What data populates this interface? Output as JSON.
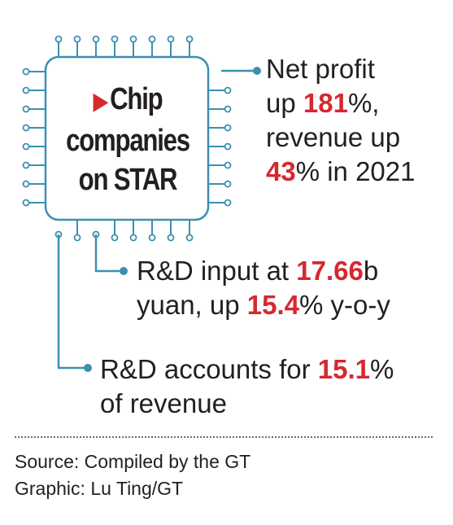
{
  "chip": {
    "arrow": "▶",
    "title_lines": [
      "Chip",
      "companies",
      "on STAR"
    ]
  },
  "stats": [
    {
      "lines": [
        [
          {
            "t": "Net profit"
          }
        ],
        [
          {
            "t": "up "
          },
          {
            "t": "181",
            "hl": true
          },
          {
            "t": "%,"
          }
        ],
        [
          {
            "t": "revenue up"
          }
        ],
        [
          {
            "t": "43",
            "hl": true
          },
          {
            "t": "% in 2021"
          }
        ]
      ]
    },
    {
      "lines": [
        [
          {
            "t": "R&D input at "
          },
          {
            "t": "17.66",
            "hl": true
          },
          {
            "t": "b"
          }
        ],
        [
          {
            "t": "yuan, up "
          },
          {
            "t": "15.4",
            "hl": true
          },
          {
            "t": "% y-o-y"
          }
        ]
      ]
    },
    {
      "lines": [
        [
          {
            "t": "R&D accounts for "
          },
          {
            "t": "15.1",
            "hl": true
          },
          {
            "t": "%"
          }
        ],
        [
          {
            "t": "of revenue"
          }
        ]
      ]
    }
  ],
  "footer": {
    "source": "Source: Compiled by the GT",
    "graphic": "Graphic: Lu Ting/GT"
  },
  "colors": {
    "accent": "#d7282f",
    "line": "#3d8fb0",
    "text": "#231f20"
  }
}
